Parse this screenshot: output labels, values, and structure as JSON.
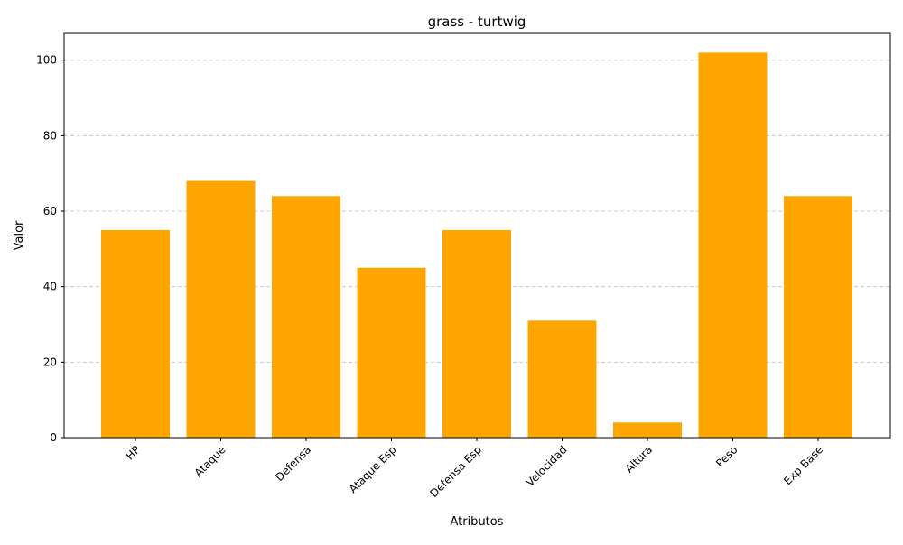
{
  "chart_data": {
    "type": "bar",
    "title": "grass - turtwig",
    "xlabel": "Atributos",
    "ylabel": "Valor",
    "categories": [
      "HP",
      "Ataque",
      "Defensa",
      "Ataque Esp",
      "Defensa Esp",
      "Velocidad",
      "Altura",
      "Peso",
      "Exp Base"
    ],
    "values": [
      55,
      68,
      64,
      45,
      55,
      31,
      4,
      102,
      64
    ],
    "ylim": [
      0,
      107.1
    ],
    "yticks": [
      0,
      20,
      40,
      60,
      80,
      100
    ],
    "grid": "y-dashed",
    "legend": "none",
    "bar_color": "#FFA500"
  }
}
